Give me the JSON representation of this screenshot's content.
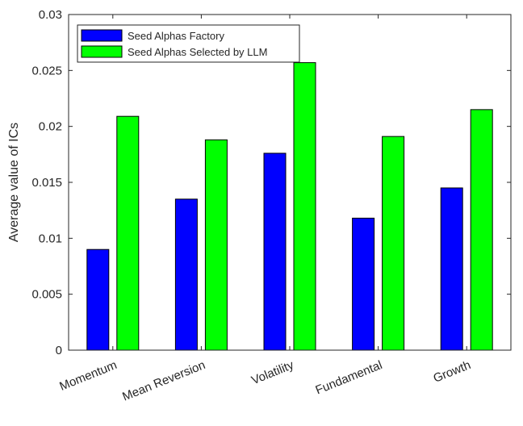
{
  "chart_data": {
    "type": "bar",
    "title": "",
    "xlabel": "",
    "ylabel": "Average value of ICs",
    "categories": [
      "Momentum",
      "Mean Reversion",
      "Volatility",
      "Fundamental",
      "Growth"
    ],
    "series": [
      {
        "name": "Seed Alphas Factory",
        "color": "#0000ff",
        "values": [
          0.009,
          0.0135,
          0.0176,
          0.0118,
          0.0145
        ]
      },
      {
        "name": "Seed Alphas Selected by LLM",
        "color": "#00ff00",
        "values": [
          0.0209,
          0.0188,
          0.0257,
          0.0191,
          0.0215
        ]
      }
    ],
    "ylim": [
      0,
      0.03
    ],
    "yticks": [
      "0",
      "0.005",
      "0.01",
      "0.015",
      "0.02",
      "0.025",
      "0.03"
    ],
    "yticks_values": [
      0,
      0.005,
      0.01,
      0.015,
      0.02,
      0.025,
      0.03
    ],
    "grid": false,
    "legend_position": "top-left",
    "x_tick_rotation": "rotated"
  }
}
